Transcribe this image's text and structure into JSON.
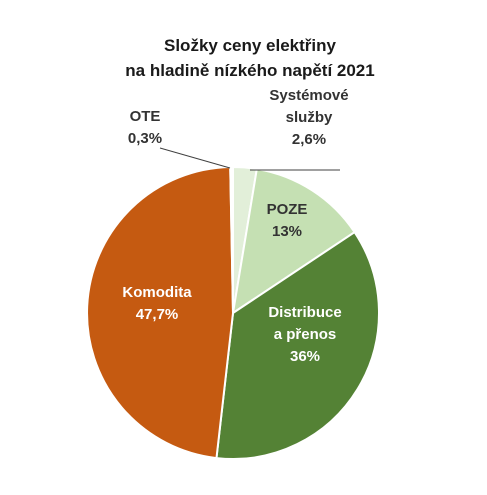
{
  "chart_data": {
    "type": "pie",
    "title": [
      "Složky ceny elektřiny",
      "na hladině nízkého napětí 2021"
    ],
    "slices": [
      {
        "name": "Systémové služby",
        "label_lines": [
          "Systémové",
          "služby",
          "2,6%"
        ],
        "value": 2.6,
        "color": "#e2efd9"
      },
      {
        "name": "POZE",
        "label_lines": [
          "POZE",
          "13%"
        ],
        "value": 13,
        "color": "#c5e0b3"
      },
      {
        "name": "Distribuce a přenos",
        "label_lines": [
          "Distribuce",
          "a přenos",
          "36%"
        ],
        "value": 36,
        "color": "#548235"
      },
      {
        "name": "Komodita",
        "label_lines": [
          "Komodita",
          "47,7%"
        ],
        "value": 47.7,
        "color": "#c55a11"
      },
      {
        "name": "OTE",
        "label_lines": [
          "OTE",
          "0,3%"
        ],
        "value": 0.3,
        "color": "#ffffff"
      }
    ],
    "start_angle_deg": 0,
    "direction": "clockwise",
    "label_colors": {
      "inside_light": "#333333",
      "inside_dark": "#ffffff",
      "outside": "#333333"
    },
    "legend": "none"
  }
}
